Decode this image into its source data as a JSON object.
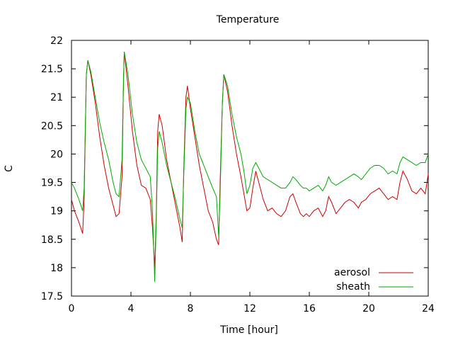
{
  "chart_data": {
    "type": "line",
    "title": "Temperature",
    "xlabel": "Time [hour]",
    "ylabel": "C",
    "xlim": [
      0,
      24
    ],
    "ylim": [
      17.5,
      22
    ],
    "xticks": [
      0,
      4,
      8,
      12,
      16,
      20,
      24
    ],
    "yticks": [
      17.5,
      18,
      18.5,
      19,
      19.5,
      20,
      20.5,
      21,
      21.5,
      22
    ],
    "tick_labels_x": [
      "0",
      "4",
      "8",
      "12",
      "16",
      "20",
      "24"
    ],
    "tick_labels_y": [
      "17.5",
      "18",
      "18.5",
      "19",
      "19.5",
      "20",
      "20.5",
      "21",
      "21.5",
      "22"
    ],
    "grid": false,
    "legend_position": "bottom-right",
    "series": [
      {
        "name": "aerosol",
        "color": "#cc0000",
        "points": [
          [
            0,
            19.2
          ],
          [
            0.2,
            19.0
          ],
          [
            0.5,
            18.8
          ],
          [
            0.75,
            18.6
          ],
          [
            0.85,
            19.2
          ],
          [
            1.0,
            21.4
          ],
          [
            1.1,
            21.65
          ],
          [
            1.3,
            21.4
          ],
          [
            1.6,
            20.9
          ],
          [
            1.9,
            20.3
          ],
          [
            2.2,
            19.8
          ],
          [
            2.5,
            19.4
          ],
          [
            2.8,
            19.1
          ],
          [
            3.0,
            18.9
          ],
          [
            3.2,
            18.95
          ],
          [
            3.4,
            19.6
          ],
          [
            3.5,
            21.3
          ],
          [
            3.55,
            21.8
          ],
          [
            3.8,
            21.2
          ],
          [
            4.1,
            20.4
          ],
          [
            4.4,
            19.8
          ],
          [
            4.7,
            19.45
          ],
          [
            5.0,
            19.4
          ],
          [
            5.3,
            19.2
          ],
          [
            5.45,
            18.7
          ],
          [
            5.6,
            18.0
          ],
          [
            5.7,
            18.9
          ],
          [
            5.8,
            20.4
          ],
          [
            5.9,
            20.7
          ],
          [
            6.1,
            20.5
          ],
          [
            6.4,
            19.9
          ],
          [
            6.7,
            19.5
          ],
          [
            7.0,
            19.1
          ],
          [
            7.3,
            18.7
          ],
          [
            7.45,
            18.45
          ],
          [
            7.55,
            19.7
          ],
          [
            7.7,
            21.0
          ],
          [
            7.8,
            21.2
          ],
          [
            8.0,
            20.8
          ],
          [
            8.3,
            20.3
          ],
          [
            8.6,
            19.8
          ],
          [
            8.9,
            19.4
          ],
          [
            9.2,
            19.0
          ],
          [
            9.5,
            18.8
          ],
          [
            9.75,
            18.5
          ],
          [
            9.9,
            18.4
          ],
          [
            10.0,
            19.5
          ],
          [
            10.15,
            20.9
          ],
          [
            10.25,
            21.4
          ],
          [
            10.5,
            21.1
          ],
          [
            10.8,
            20.5
          ],
          [
            11.1,
            20.0
          ],
          [
            11.4,
            19.6
          ],
          [
            11.6,
            19.3
          ],
          [
            11.8,
            19.0
          ],
          [
            12.0,
            19.05
          ],
          [
            12.2,
            19.4
          ],
          [
            12.4,
            19.7
          ],
          [
            12.6,
            19.5
          ],
          [
            12.9,
            19.2
          ],
          [
            13.2,
            19.0
          ],
          [
            13.5,
            19.05
          ],
          [
            13.8,
            18.95
          ],
          [
            14.1,
            18.9
          ],
          [
            14.4,
            19.0
          ],
          [
            14.7,
            19.25
          ],
          [
            14.9,
            19.3
          ],
          [
            15.1,
            19.15
          ],
          [
            15.4,
            18.95
          ],
          [
            15.6,
            18.9
          ],
          [
            15.8,
            18.95
          ],
          [
            16.0,
            18.9
          ],
          [
            16.3,
            19.0
          ],
          [
            16.6,
            19.05
          ],
          [
            16.9,
            18.9
          ],
          [
            17.1,
            19.0
          ],
          [
            17.3,
            19.25
          ],
          [
            17.5,
            19.15
          ],
          [
            17.8,
            18.95
          ],
          [
            18.1,
            19.05
          ],
          [
            18.4,
            19.15
          ],
          [
            18.7,
            19.2
          ],
          [
            19.0,
            19.15
          ],
          [
            19.3,
            19.05
          ],
          [
            19.5,
            19.15
          ],
          [
            19.8,
            19.2
          ],
          [
            20.1,
            19.3
          ],
          [
            20.4,
            19.35
          ],
          [
            20.7,
            19.4
          ],
          [
            21.0,
            19.3
          ],
          [
            21.3,
            19.2
          ],
          [
            21.6,
            19.25
          ],
          [
            21.9,
            19.2
          ],
          [
            22.1,
            19.5
          ],
          [
            22.3,
            19.7
          ],
          [
            22.6,
            19.55
          ],
          [
            22.9,
            19.35
          ],
          [
            23.2,
            19.3
          ],
          [
            23.5,
            19.4
          ],
          [
            23.8,
            19.3
          ],
          [
            24.0,
            19.65
          ]
        ]
      },
      {
        "name": "sheath",
        "color": "#00aa00",
        "points": [
          [
            0,
            19.5
          ],
          [
            0.2,
            19.4
          ],
          [
            0.5,
            19.2
          ],
          [
            0.75,
            19.0
          ],
          [
            0.85,
            19.4
          ],
          [
            1.0,
            21.4
          ],
          [
            1.1,
            21.65
          ],
          [
            1.3,
            21.45
          ],
          [
            1.6,
            21.0
          ],
          [
            1.9,
            20.55
          ],
          [
            2.2,
            20.2
          ],
          [
            2.5,
            19.9
          ],
          [
            2.8,
            19.5
          ],
          [
            3.0,
            19.3
          ],
          [
            3.2,
            19.25
          ],
          [
            3.4,
            19.9
          ],
          [
            3.5,
            21.3
          ],
          [
            3.55,
            21.8
          ],
          [
            3.8,
            21.4
          ],
          [
            4.1,
            20.7
          ],
          [
            4.4,
            20.2
          ],
          [
            4.7,
            19.9
          ],
          [
            5.0,
            19.75
          ],
          [
            5.3,
            19.6
          ],
          [
            5.45,
            19.0
          ],
          [
            5.6,
            17.75
          ],
          [
            5.7,
            18.8
          ],
          [
            5.8,
            20.1
          ],
          [
            5.9,
            20.4
          ],
          [
            6.1,
            20.2
          ],
          [
            6.4,
            19.8
          ],
          [
            6.7,
            19.5
          ],
          [
            7.0,
            19.2
          ],
          [
            7.3,
            18.85
          ],
          [
            7.45,
            18.7
          ],
          [
            7.55,
            19.6
          ],
          [
            7.7,
            20.8
          ],
          [
            7.8,
            21.0
          ],
          [
            8.0,
            20.9
          ],
          [
            8.3,
            20.4
          ],
          [
            8.6,
            20.0
          ],
          [
            8.9,
            19.8
          ],
          [
            9.2,
            19.6
          ],
          [
            9.5,
            19.4
          ],
          [
            9.75,
            19.25
          ],
          [
            9.9,
            18.55
          ],
          [
            10.0,
            19.3
          ],
          [
            10.15,
            20.9
          ],
          [
            10.25,
            21.4
          ],
          [
            10.5,
            21.2
          ],
          [
            10.8,
            20.7
          ],
          [
            11.1,
            20.3
          ],
          [
            11.4,
            20.0
          ],
          [
            11.6,
            19.7
          ],
          [
            11.8,
            19.3
          ],
          [
            12.0,
            19.45
          ],
          [
            12.2,
            19.75
          ],
          [
            12.4,
            19.85
          ],
          [
            12.6,
            19.75
          ],
          [
            12.9,
            19.6
          ],
          [
            13.2,
            19.55
          ],
          [
            13.5,
            19.5
          ],
          [
            13.8,
            19.45
          ],
          [
            14.1,
            19.4
          ],
          [
            14.4,
            19.4
          ],
          [
            14.7,
            19.5
          ],
          [
            14.9,
            19.6
          ],
          [
            15.1,
            19.55
          ],
          [
            15.4,
            19.45
          ],
          [
            15.6,
            19.4
          ],
          [
            15.8,
            19.4
          ],
          [
            16.0,
            19.35
          ],
          [
            16.3,
            19.4
          ],
          [
            16.6,
            19.45
          ],
          [
            16.9,
            19.35
          ],
          [
            17.1,
            19.45
          ],
          [
            17.3,
            19.6
          ],
          [
            17.5,
            19.5
          ],
          [
            17.8,
            19.45
          ],
          [
            18.1,
            19.5
          ],
          [
            18.4,
            19.55
          ],
          [
            18.7,
            19.6
          ],
          [
            19.0,
            19.65
          ],
          [
            19.3,
            19.6
          ],
          [
            19.5,
            19.55
          ],
          [
            19.8,
            19.65
          ],
          [
            20.1,
            19.75
          ],
          [
            20.4,
            19.8
          ],
          [
            20.7,
            19.8
          ],
          [
            21.0,
            19.75
          ],
          [
            21.3,
            19.65
          ],
          [
            21.6,
            19.7
          ],
          [
            21.9,
            19.65
          ],
          [
            22.1,
            19.85
          ],
          [
            22.3,
            19.95
          ],
          [
            22.6,
            19.9
          ],
          [
            22.9,
            19.85
          ],
          [
            23.2,
            19.8
          ],
          [
            23.5,
            19.85
          ],
          [
            23.8,
            19.85
          ],
          [
            24.0,
            20.0
          ]
        ]
      }
    ]
  }
}
